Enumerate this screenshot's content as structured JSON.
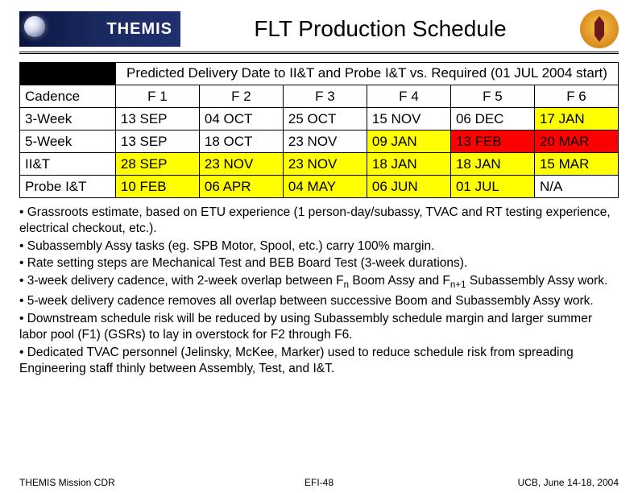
{
  "header": {
    "logo_text": "THEMIS",
    "title": "FLT Production Schedule"
  },
  "table": {
    "super_header": "Predicted Delivery Date to II&T and Probe I&T vs. Required (01 JUL 2004 start)",
    "columns": [
      "Cadence",
      "F 1",
      "F 2",
      "F 3",
      "F 4",
      "F 5",
      "F 6"
    ],
    "rows": [
      {
        "label": "3-Week",
        "cells": [
          {
            "v": "13 SEP",
            "bg": "#ffffff"
          },
          {
            "v": "04 OCT",
            "bg": "#ffffff"
          },
          {
            "v": "25 OCT",
            "bg": "#ffffff"
          },
          {
            "v": "15 NOV",
            "bg": "#ffffff"
          },
          {
            "v": "06 DEC",
            "bg": "#ffffff"
          },
          {
            "v": "17 JAN",
            "bg": "#ffff00"
          }
        ]
      },
      {
        "label": "5-Week",
        "cells": [
          {
            "v": "13 SEP",
            "bg": "#ffffff"
          },
          {
            "v": "18 OCT",
            "bg": "#ffffff"
          },
          {
            "v": "23 NOV",
            "bg": "#ffffff"
          },
          {
            "v": "09 JAN",
            "bg": "#ffff00"
          },
          {
            "v": "13 FEB",
            "bg": "#ff0000"
          },
          {
            "v": "20 MAR",
            "bg": "#ff0000"
          }
        ]
      },
      {
        "label": "II&T",
        "cells": [
          {
            "v": "28 SEP",
            "bg": "#ffff00"
          },
          {
            "v": "23 NOV",
            "bg": "#ffff00"
          },
          {
            "v": "23 NOV",
            "bg": "#ffff00"
          },
          {
            "v": "18 JAN",
            "bg": "#ffff00"
          },
          {
            "v": "18 JAN",
            "bg": "#ffff00"
          },
          {
            "v": "15 MAR",
            "bg": "#ffff00"
          }
        ]
      },
      {
        "label": "Probe I&T",
        "cells": [
          {
            "v": "10 FEB",
            "bg": "#ffff00"
          },
          {
            "v": "06 APR",
            "bg": "#ffff00"
          },
          {
            "v": "04 MAY",
            "bg": "#ffff00"
          },
          {
            "v": "06 JUN",
            "bg": "#ffff00"
          },
          {
            "v": "01 JUL",
            "bg": "#ffff00"
          },
          {
            "v": "N/A",
            "bg": "#ffffff"
          }
        ]
      }
    ],
    "col_widths": [
      "16%",
      "14%",
      "14%",
      "14%",
      "14%",
      "14%",
      "14%"
    ],
    "cell_fontsize": 17,
    "border_color": "#000000",
    "highlight_yellow": "#ffff00",
    "highlight_red": "#ff0000",
    "background_white": "#ffffff"
  },
  "bullets": [
    "Grassroots estimate, based on ETU experience (1 person-day/subassy, TVAC and RT testing experience, electrical checkout, etc.).",
    "Subassembly Assy tasks (eg. SPB Motor, Spool, etc.) carry 100% margin.",
    "Rate setting steps are Mechanical Test and BEB Board Test (3-week durations).",
    "3-week delivery cadence, with 2-week overlap between F_n Boom Assy and F_n+1 Subassembly Assy work.",
    "5-week delivery cadence removes all overlap between successive Boom and Subassembly Assy work.",
    "Downstream schedule risk will be reduced by using Subassembly schedule margin and larger summer labor pool (F1) (GSRs) to lay in overstock for F2 through F6.",
    "Dedicated TVAC personnel (Jelinsky, McKee, Marker) used to reduce schedule risk from spreading Engineering staff thinly between Assembly, Test, and I&T."
  ],
  "footer": {
    "left": "THEMIS Mission CDR",
    "center_prefix": "EFI-",
    "center_page": "48",
    "right": "UCB, June 14-18, 2004"
  }
}
